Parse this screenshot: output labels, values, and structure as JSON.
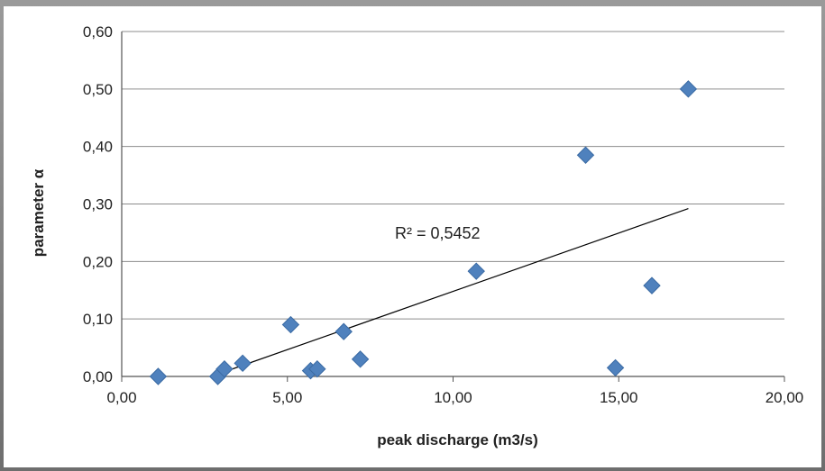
{
  "chart_data": {
    "type": "scatter",
    "xlabel": "peak discharge (m3/s)",
    "ylabel": "parameter α",
    "xlim": [
      0,
      20
    ],
    "ylim": [
      0,
      0.6
    ],
    "x_ticks": [
      "0,00",
      "5,00",
      "10,00",
      "15,00",
      "20,00"
    ],
    "y_ticks": [
      "0,00",
      "0,10",
      "0,20",
      "0,30",
      "0,40",
      "0,50",
      "0,60"
    ],
    "grid": "horizontal",
    "legend": "none",
    "marker_color": "#4f81bd",
    "series": [
      {
        "marker": "diamond",
        "points": [
          {
            "x": 1.1,
            "y": 0.0
          },
          {
            "x": 2.9,
            "y": 0.0
          },
          {
            "x": 3.1,
            "y": 0.013
          },
          {
            "x": 3.65,
            "y": 0.023
          },
          {
            "x": 5.1,
            "y": 0.09
          },
          {
            "x": 5.7,
            "y": 0.01
          },
          {
            "x": 5.9,
            "y": 0.013
          },
          {
            "x": 6.7,
            "y": 0.078
          },
          {
            "x": 7.2,
            "y": 0.03
          },
          {
            "x": 10.7,
            "y": 0.183
          },
          {
            "x": 14.0,
            "y": 0.385
          },
          {
            "x": 14.9,
            "y": 0.015
          },
          {
            "x": 16.0,
            "y": 0.158
          },
          {
            "x": 17.1,
            "y": 0.5
          }
        ]
      }
    ],
    "trendline": {
      "type": "linear",
      "x_start": 2.85,
      "y_start": 0.003,
      "x_end": 17.1,
      "y_end": 0.292,
      "color": "#000000",
      "label": "R² = 0,5452"
    }
  }
}
